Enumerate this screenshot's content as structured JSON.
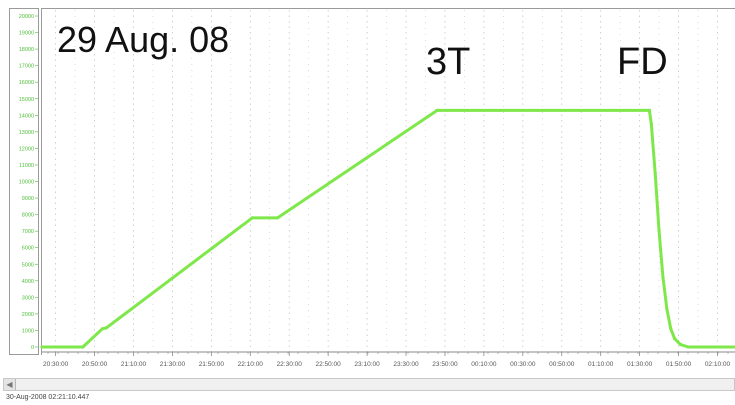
{
  "annotations": {
    "date": "29 Aug. 08",
    "mark_3t": "3T",
    "mark_fd": "FD"
  },
  "footer": {
    "timestamp": "30-Aug-2008 02:21:10.447"
  },
  "colors": {
    "series": "#7ee84a",
    "tick_text": "#4fbf3a",
    "grid": "#c4c4c4",
    "axis": "#8a8a8a"
  },
  "chart_data": {
    "type": "line",
    "title": "",
    "xlabel": "",
    "ylabel": "",
    "xlim": [
      "20:23:00",
      "02:19:00"
    ],
    "ylim": [
      0,
      20000
    ],
    "grid": true,
    "y_ticks": [
      0,
      1000,
      2000,
      3000,
      4000,
      5000,
      6000,
      7000,
      8000,
      9000,
      10000,
      11000,
      12000,
      13000,
      14000,
      15000,
      16000,
      17000,
      18000,
      19000,
      20000
    ],
    "x_ticks": [
      "20:30:00",
      "20:50:00",
      "21:10:00",
      "21:30:00",
      "21:50:00",
      "22:10:00",
      "22:30:00",
      "22:50:00",
      "23:10:00",
      "23:30:00",
      "23:50:00",
      "00:10:00",
      "00:30:00",
      "00:50:00",
      "01:10:00",
      "01:30:00",
      "01:50:00",
      "02:10:00"
    ],
    "series": [
      {
        "points": [
          [
            "20:23:00",
            0
          ],
          [
            "20:44:00",
            0
          ],
          [
            "20:54:00",
            1100
          ],
          [
            "20:56:00",
            1150
          ],
          [
            "22:11:00",
            7800
          ],
          [
            "22:24:00",
            7800
          ],
          [
            "23:46:00",
            14300
          ],
          [
            "01:35:00",
            14300
          ],
          [
            "01:36:00",
            13500
          ],
          [
            "01:38:00",
            10500
          ],
          [
            "01:40:00",
            7000
          ],
          [
            "01:42:00",
            4200
          ],
          [
            "01:44:00",
            2300
          ],
          [
            "01:46:00",
            1100
          ],
          [
            "01:48:00",
            500
          ],
          [
            "01:51:00",
            150
          ],
          [
            "01:55:00",
            0
          ],
          [
            "02:19:00",
            0
          ]
        ]
      }
    ]
  }
}
